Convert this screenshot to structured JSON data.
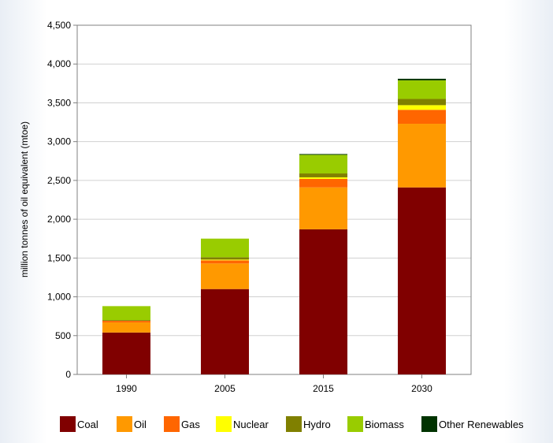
{
  "chart_data": {
    "type": "bar",
    "stacked": true,
    "title": "",
    "xlabel": "",
    "ylabel": "million tonnes of oil equivalent (mtoe)",
    "ylim": [
      0,
      4500
    ],
    "yticks": [
      0,
      500,
      1000,
      1500,
      2000,
      2500,
      3000,
      3500,
      4000,
      4500
    ],
    "ytick_labels": [
      "0",
      "500",
      "1,000",
      "1,500",
      "2,000",
      "2,500",
      "3,000",
      "3,500",
      "4,000",
      "4,500"
    ],
    "grid": true,
    "legend": "bottom",
    "categories": [
      "1990",
      "2005",
      "2015",
      "2030"
    ],
    "series": [
      {
        "name": "Coal",
        "color": "#800000",
        "values": [
          540,
          1100,
          1870,
          2410
        ]
      },
      {
        "name": "Oil",
        "color": "#ff9900",
        "values": [
          130,
          330,
          540,
          820
        ]
      },
      {
        "name": "Gas",
        "color": "#ff6600",
        "values": [
          20,
          40,
          110,
          180
        ]
      },
      {
        "name": "Nuclear",
        "color": "#ffff00",
        "values": [
          0,
          10,
          20,
          60
        ]
      },
      {
        "name": "Hydro",
        "color": "#808000",
        "values": [
          10,
          30,
          50,
          80
        ]
      },
      {
        "name": "Biomass",
        "color": "#99cc00",
        "values": [
          180,
          240,
          240,
          240
        ]
      },
      {
        "name": "Other Renewables",
        "color": "#003300",
        "values": [
          0,
          0,
          10,
          20
        ]
      }
    ]
  }
}
